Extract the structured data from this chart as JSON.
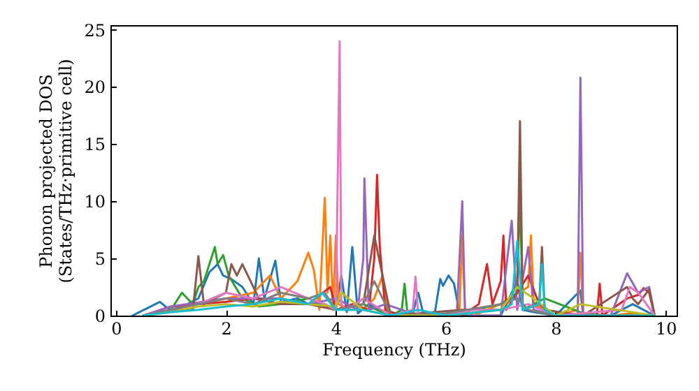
{
  "chart_data": {
    "type": "line",
    "xlabel": "Frequency (THz)",
    "ylabel": "Phonon projected DOS\n(States/THz·primitive cell)",
    "xlim": [
      -0.1,
      10.2
    ],
    "ylim": [
      0,
      25.4
    ],
    "xticks": [
      0,
      2,
      4,
      6,
      8,
      10
    ],
    "yticks": [
      0,
      5,
      10,
      15,
      20,
      25
    ],
    "grid": false,
    "marker": "none",
    "line_style": "solid",
    "series": [
      {
        "color": "#1f77b4",
        "x": [
          0.3,
          0.8,
          0.9,
          1.0,
          1.3,
          1.5,
          1.7,
          1.85,
          1.95,
          2.1,
          2.3,
          2.5,
          2.6,
          2.7,
          2.9,
          3.0,
          3.3,
          3.5,
          3.8,
          4.0,
          4.1,
          4.2,
          4.3,
          4.4,
          4.6,
          5.0,
          5.4,
          5.5,
          5.6,
          5.8,
          5.9,
          5.95,
          6.05,
          6.15,
          6.25,
          6.4,
          7.0,
          7.3,
          7.4,
          7.6,
          8.0,
          8.45,
          8.5,
          9.0,
          9.4,
          9.8
        ],
        "values": [
          0,
          1.2,
          0.8,
          0.5,
          1.0,
          1.5,
          3.8,
          4.5,
          3.5,
          3.2,
          2.5,
          1.0,
          5.0,
          1.5,
          4.8,
          1.2,
          1.5,
          1.0,
          1.0,
          0.5,
          3.5,
          0.3,
          6.0,
          0.2,
          1.0,
          0,
          0.2,
          2.0,
          0,
          0.2,
          3.2,
          2.6,
          3.5,
          2.8,
          0.2,
          0,
          0,
          3.0,
          0.5,
          0.3,
          0,
          2.2,
          0,
          0,
          1.0,
          0
        ]
      },
      {
        "color": "#ff7f0e",
        "x": [
          0.5,
          1.0,
          1.5,
          2.0,
          2.5,
          2.8,
          3.0,
          3.3,
          3.5,
          3.6,
          3.7,
          3.8,
          3.85,
          3.9,
          3.95,
          4.0,
          4.05,
          4.2,
          4.5,
          4.7,
          4.85,
          4.95,
          5.2,
          5.5,
          6.0,
          6.25,
          6.3,
          6.35,
          6.5,
          7.0,
          7.5,
          7.55,
          7.6,
          8.0,
          8.4,
          8.45,
          8.5,
          9.0,
          9.4,
          9.8
        ],
        "values": [
          0,
          0.5,
          1.0,
          1.5,
          2.0,
          3.5,
          1.5,
          3.0,
          5.5,
          4.0,
          0.5,
          10.3,
          2.0,
          7.0,
          0.5,
          7.0,
          1.0,
          0.5,
          0.5,
          1.5,
          3.5,
          0,
          0,
          0,
          0,
          0.5,
          7.0,
          0.5,
          0,
          1.0,
          2.5,
          7.0,
          1.0,
          0,
          0.5,
          5.5,
          0,
          0,
          0.2,
          0
        ]
      },
      {
        "color": "#2ca02c",
        "x": [
          0.5,
          1.0,
          1.2,
          1.4,
          1.5,
          1.6,
          1.7,
          1.8,
          1.85,
          1.95,
          2.05,
          2.3,
          2.6,
          3.0,
          3.5,
          4.0,
          4.5,
          5.0,
          5.2,
          5.25,
          5.3,
          5.6,
          6.0,
          6.5,
          7.0,
          7.3,
          7.35,
          7.4,
          7.8,
          8.5,
          9.0,
          9.8
        ],
        "values": [
          0,
          0.5,
          2.0,
          1.0,
          2.5,
          3.0,
          4.5,
          6.0,
          4.5,
          5.3,
          3.5,
          1.5,
          0.8,
          1.0,
          1.5,
          0.5,
          1.0,
          0,
          0.5,
          2.8,
          0.3,
          0,
          0,
          0.5,
          1.0,
          2.0,
          11.0,
          0.5,
          1.5,
          0.2,
          0,
          0
        ]
      },
      {
        "color": "#d62728",
        "x": [
          0.5,
          1.0,
          1.5,
          2.0,
          2.5,
          3.0,
          3.5,
          3.9,
          4.0,
          4.3,
          4.6,
          4.7,
          4.75,
          4.8,
          4.9,
          5.2,
          6.3,
          6.6,
          6.75,
          6.85,
          7.0,
          7.05,
          7.1,
          7.3,
          7.5,
          7.7,
          8.0,
          8.75,
          8.8,
          8.85,
          9.3,
          9.5,
          9.6,
          9.7,
          9.8
        ],
        "values": [
          0,
          0.8,
          1.0,
          1.2,
          1.5,
          1.0,
          1.0,
          2.5,
          0.5,
          1.0,
          0.5,
          5.0,
          12.3,
          6.0,
          0.5,
          0,
          0,
          1.0,
          4.5,
          1.0,
          3.0,
          7.0,
          0.5,
          2.0,
          3.5,
          1.0,
          0,
          0,
          2.8,
          0,
          1.5,
          1.8,
          2.4,
          2.0,
          0
        ]
      },
      {
        "color": "#9467bd",
        "x": [
          0.5,
          1.0,
          2.0,
          3.0,
          3.5,
          4.0,
          4.4,
          4.5,
          4.52,
          4.6,
          4.9,
          5.5,
          6.2,
          6.3,
          6.35,
          6.5,
          7.0,
          7.2,
          7.3,
          7.5,
          7.6,
          8.0,
          8.4,
          8.45,
          8.5,
          9.0,
          9.3,
          9.5,
          9.7,
          9.8
        ],
        "values": [
          0,
          0.8,
          1.5,
          1.5,
          1.0,
          1.5,
          0.5,
          5.0,
          12.0,
          0.5,
          1.0,
          0,
          0,
          10.0,
          0.5,
          0,
          0,
          8.3,
          0.5,
          6.0,
          0.5,
          0,
          0,
          20.8,
          0,
          0,
          3.7,
          2.0,
          2.5,
          0
        ]
      },
      {
        "color": "#8c564b",
        "x": [
          0.5,
          1.0,
          1.4,
          1.5,
          1.6,
          2.0,
          2.1,
          2.2,
          2.3,
          2.6,
          3.0,
          3.5,
          4.0,
          4.5,
          4.7,
          5.0,
          6.3,
          7.0,
          7.3,
          7.35,
          7.4,
          7.7,
          7.75,
          7.8,
          8.5,
          9.3,
          9.4,
          9.5,
          9.7,
          9.8
        ],
        "values": [
          0,
          0.5,
          0.5,
          5.2,
          1.0,
          2.0,
          4.5,
          3.5,
          4.5,
          1.5,
          1.0,
          1.0,
          0.5,
          1.0,
          7.0,
          0,
          0.5,
          0.5,
          2.0,
          17.0,
          0.5,
          1.0,
          6.0,
          0.5,
          0,
          2.5,
          1.5,
          1.0,
          2.3,
          0
        ]
      },
      {
        "color": "#e377c2",
        "x": [
          0.5,
          1.0,
          1.5,
          2.0,
          2.5,
          3.0,
          3.5,
          3.8,
          4.0,
          4.07,
          4.1,
          4.2,
          4.5,
          5.0,
          5.4,
          5.45,
          5.5,
          6.0,
          6.5,
          7.0,
          7.5,
          8.0,
          9.2,
          9.35,
          9.5,
          9.8
        ],
        "values": [
          0,
          0.5,
          1.0,
          2.0,
          1.5,
          2.5,
          1.5,
          1.0,
          0.5,
          24.0,
          1.0,
          0.5,
          1.5,
          0,
          0.5,
          3.4,
          0,
          0,
          0.5,
          0.5,
          1.0,
          0,
          0.5,
          2.5,
          2.0,
          0
        ]
      },
      {
        "color": "#7f7f7f",
        "x": [
          0.5,
          1.0,
          1.5,
          2.0,
          2.5,
          3.0,
          3.5,
          3.8,
          4.0,
          4.5,
          4.7,
          5.0,
          6.0,
          7.0,
          7.3,
          7.5,
          8.0,
          9.8
        ],
        "values": [
          0,
          0.5,
          1.0,
          1.5,
          1.0,
          2.0,
          1.5,
          2.0,
          0.5,
          1.0,
          3.0,
          0,
          0.2,
          1.0,
          1.5,
          0.5,
          0,
          0
        ]
      },
      {
        "color": "#bcbd22",
        "x": [
          0.5,
          1.0,
          1.5,
          2.0,
          2.5,
          3.0,
          3.5,
          4.0,
          4.1,
          4.5,
          5.0,
          6.0,
          7.0,
          7.3,
          7.6,
          8.0,
          8.45,
          9.8
        ],
        "values": [
          0,
          0.3,
          0.8,
          1.0,
          0.8,
          1.2,
          1.0,
          0.8,
          2.0,
          0.5,
          0,
          0,
          0.5,
          2.5,
          1.5,
          0,
          1.0,
          0
        ]
      },
      {
        "color": "#17becf",
        "x": [
          0.5,
          1.0,
          1.5,
          2.0,
          2.5,
          3.0,
          3.5,
          3.75,
          4.0,
          4.5,
          5.0,
          5.5,
          6.0,
          7.0,
          7.2,
          7.3,
          7.4,
          7.7,
          7.75,
          7.8,
          8.0,
          9.8
        ],
        "values": [
          0,
          0.3,
          0.5,
          0.8,
          1.0,
          1.5,
          1.0,
          2.0,
          0.5,
          0.5,
          0,
          0.5,
          0,
          0.5,
          1.0,
          6.5,
          0.5,
          1.0,
          4.5,
          0.5,
          0,
          0
        ]
      }
    ]
  }
}
